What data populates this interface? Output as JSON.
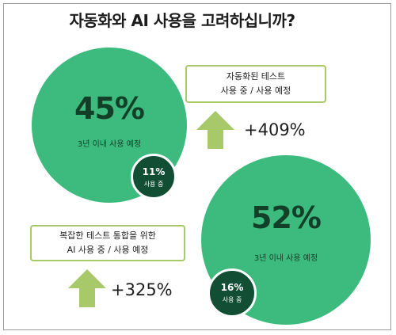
{
  "title": "자동화와 AI 사용을 고려하십니까?",
  "colors": {
    "circle": "#3dba7e",
    "badge": "#114e34",
    "arrow": "#a7c96a",
    "text_dark": "#123f27"
  },
  "chart_data": [
    {
      "type": "bubble",
      "label": "자동화된 테스트",
      "series": [
        {
          "name": "3년 이내 사용 예정",
          "value": 45,
          "display": "45%"
        },
        {
          "name": "사용 중",
          "value": 11,
          "display": "11%"
        }
      ],
      "callout": {
        "line1": "자동화된 테스트",
        "line2": "사용 중 / 사용 예정"
      },
      "growth": "+409%"
    },
    {
      "type": "bubble",
      "label": "복잡한 테스트 통합을 위한 AI",
      "series": [
        {
          "name": "3년 이내 사용 예정",
          "value": 52,
          "display": "52%"
        },
        {
          "name": "사용 중",
          "value": 16,
          "display": "16%"
        }
      ],
      "callout": {
        "line1": "복잡한 테스트 통합을 위한",
        "line2": "AI 사용 중 / 사용 예정"
      },
      "growth": "+325%"
    }
  ]
}
